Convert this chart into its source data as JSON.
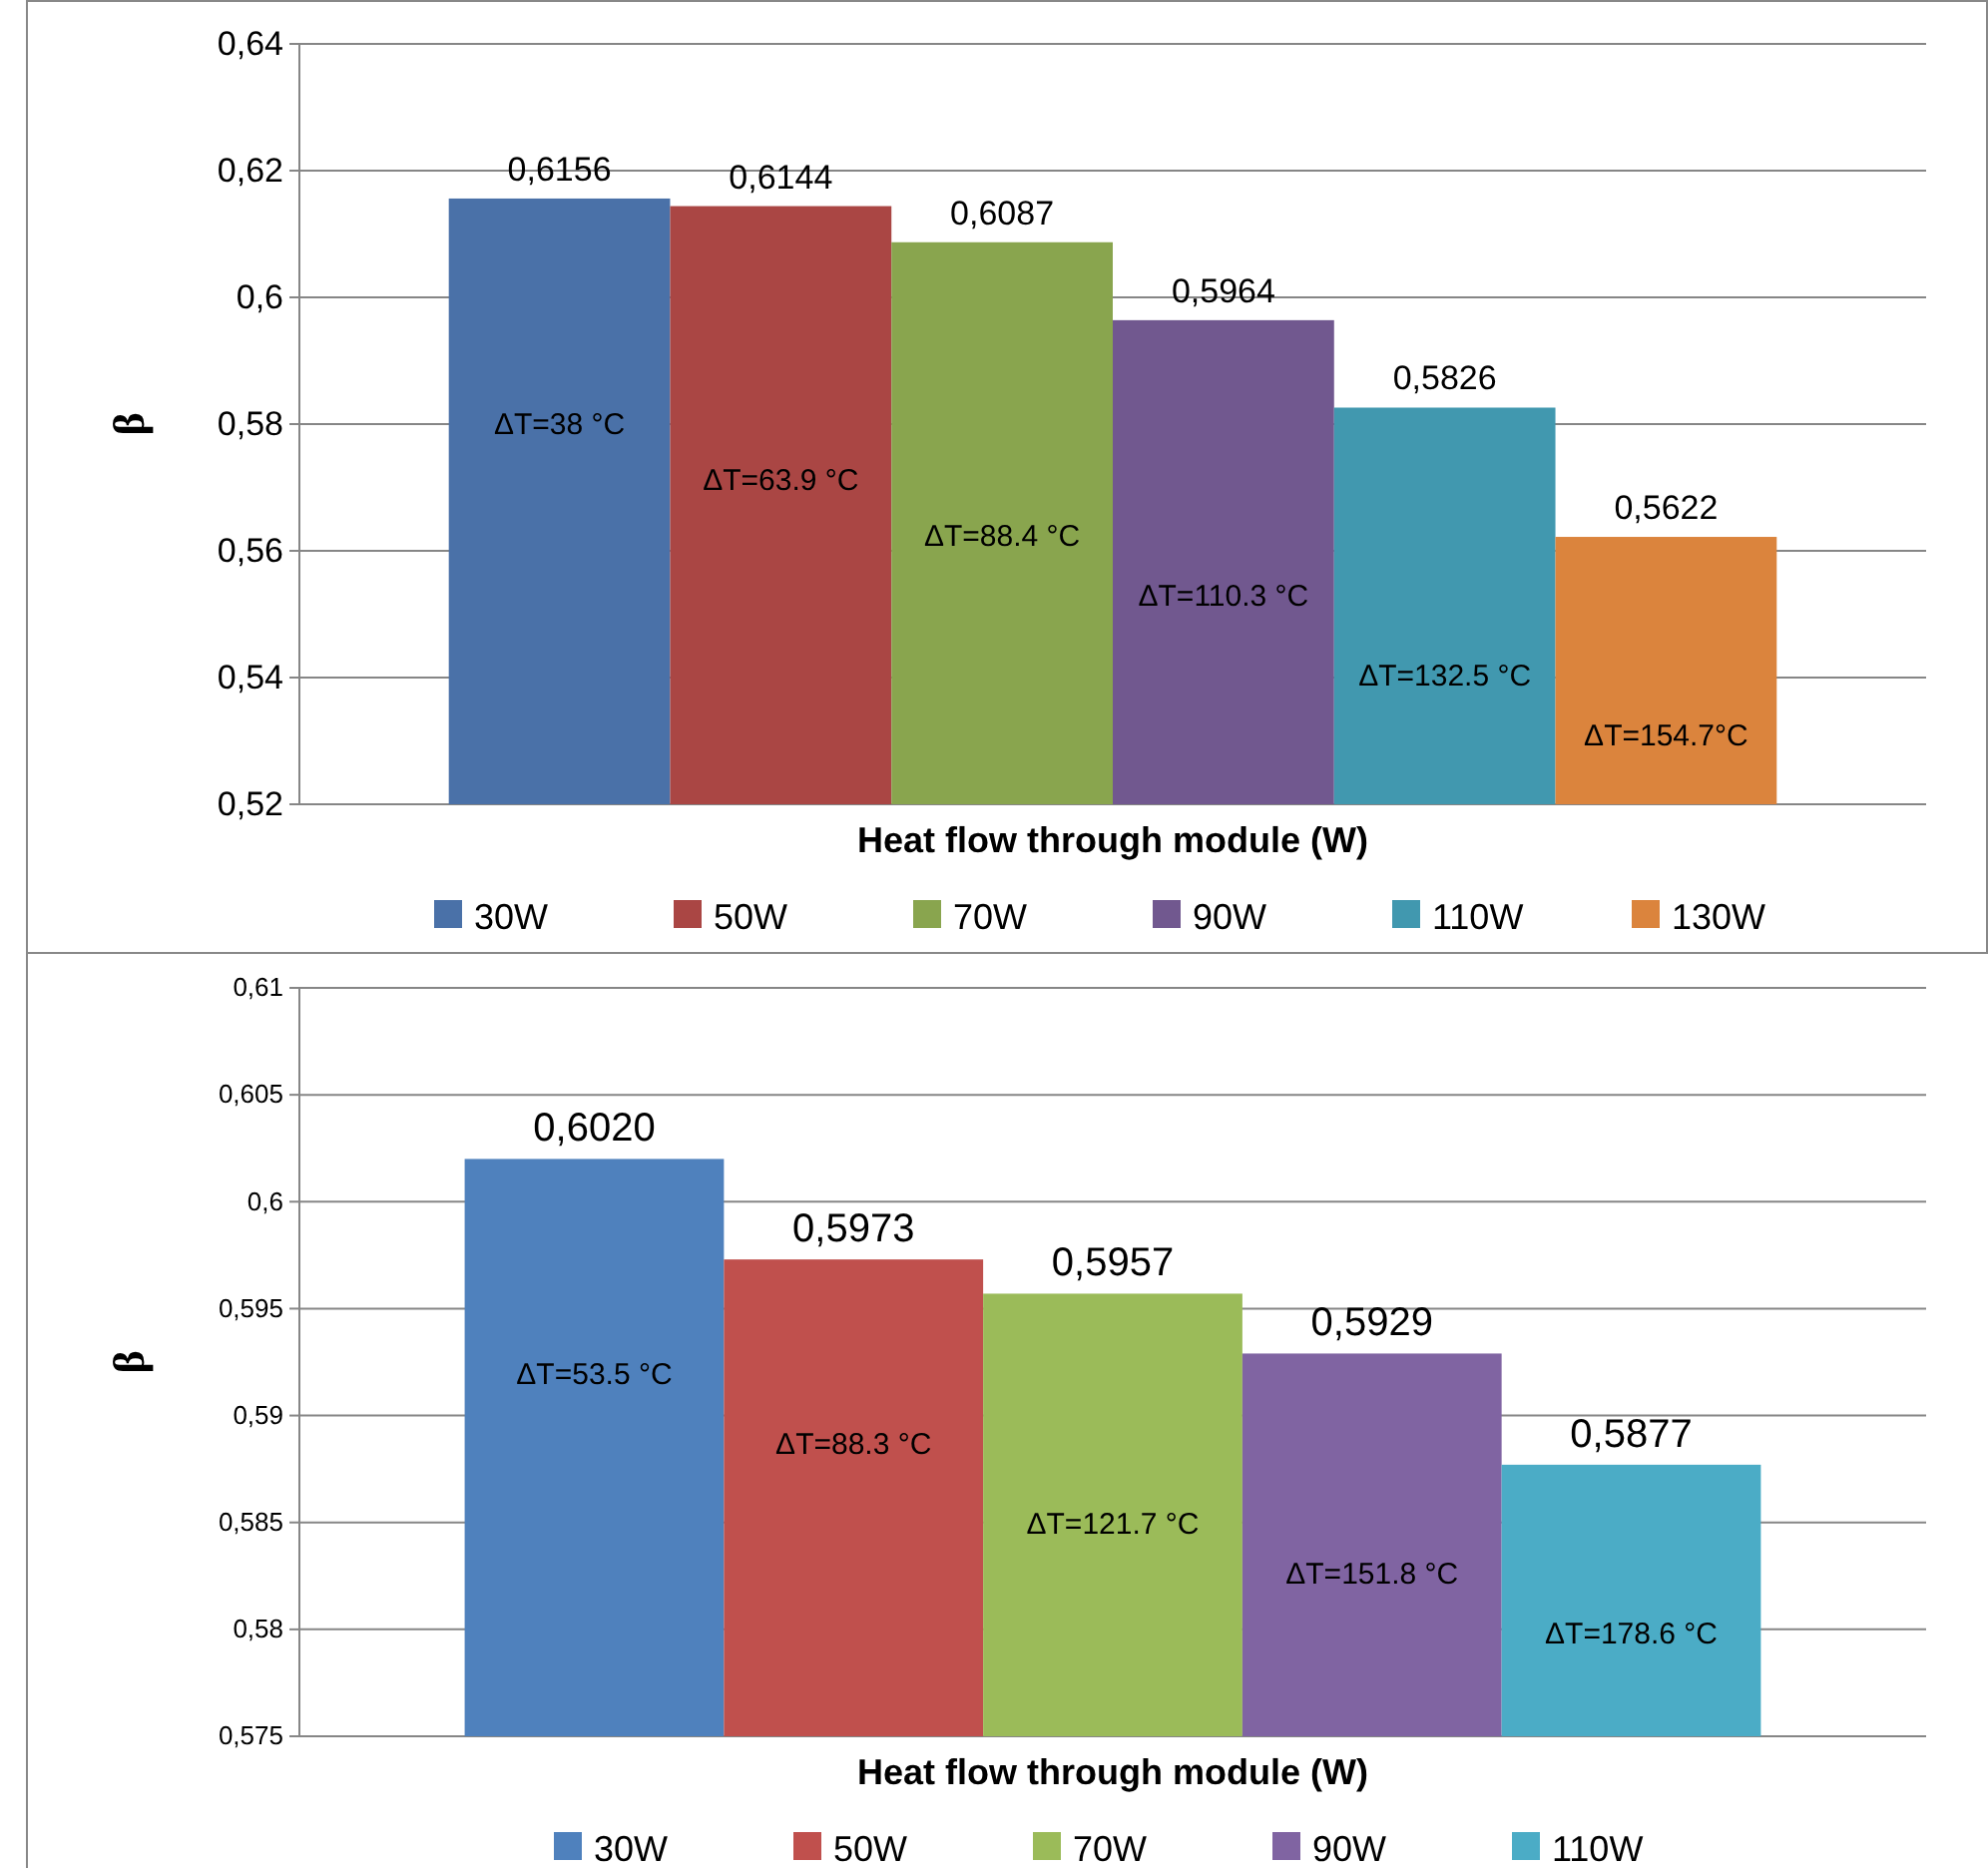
{
  "chart_data": [
    {
      "type": "bar",
      "xlabel": "Heat flow through module (W)",
      "ylabel": "β",
      "categories": [
        null
      ],
      "ylim": [
        0.52,
        0.64
      ],
      "yticks": [
        {
          "value": 0.52,
          "label": "0,52"
        },
        {
          "value": 0.54,
          "label": "0,54"
        },
        {
          "value": 0.56,
          "label": "0,56"
        },
        {
          "value": 0.58,
          "label": "0,58"
        },
        {
          "value": 0.6,
          "label": "0,6"
        },
        {
          "value": 0.62,
          "label": "0,62"
        },
        {
          "value": 0.64,
          "label": "0,64"
        }
      ],
      "grid": "y",
      "legend": "bottom",
      "series": [
        {
          "name": "30W",
          "color": "#4a71a8",
          "values": [
            0.6156
          ],
          "value_labels": [
            "0,6156"
          ]
        },
        {
          "name": "50W",
          "color": "#aa4644",
          "values": [
            0.6144
          ],
          "value_labels": [
            "0,6144"
          ]
        },
        {
          "name": "70W",
          "color": "#89a54e",
          "values": [
            0.6087
          ],
          "value_labels": [
            "0,6087"
          ]
        },
        {
          "name": "90W",
          "color": "#71588f",
          "values": [
            0.5964
          ],
          "value_labels": [
            "0,5964"
          ]
        },
        {
          "name": "110W",
          "color": "#4198af",
          "values": [
            0.5826
          ],
          "value_labels": [
            "0,5826"
          ]
        },
        {
          "name": "130W",
          "color": "#db843d",
          "values": [
            0.5622
          ],
          "value_labels": [
            "0,5622"
          ]
        }
      ],
      "annotations": [
        "ΔT=38 °C",
        "ΔT=63.9 °C",
        "ΔT=88.4 °C",
        "ΔT=110.3 °C",
        "ΔT=132.5 °C",
        "ΔT=154.7°C"
      ]
    },
    {
      "type": "bar",
      "xlabel": "Heat flow through module (W)",
      "ylabel": "β",
      "categories": [
        null
      ],
      "ylim": [
        0.575,
        0.61
      ],
      "yticks": [
        {
          "value": 0.575,
          "label": "0,575"
        },
        {
          "value": 0.58,
          "label": "0,58"
        },
        {
          "value": 0.585,
          "label": "0,585"
        },
        {
          "value": 0.59,
          "label": "0,59"
        },
        {
          "value": 0.595,
          "label": "0,595"
        },
        {
          "value": 0.6,
          "label": "0,6"
        },
        {
          "value": 0.605,
          "label": "0,605"
        },
        {
          "value": 0.61,
          "label": "0,61"
        }
      ],
      "grid": "y",
      "legend": "bottom",
      "series": [
        {
          "name": "30W",
          "color": "#4f81bd",
          "values": [
            0.602
          ],
          "value_labels": [
            "0,6020"
          ]
        },
        {
          "name": "50W",
          "color": "#c0504d",
          "values": [
            0.5973
          ],
          "value_labels": [
            "0,5973"
          ]
        },
        {
          "name": "70W",
          "color": "#9bbb59",
          "values": [
            0.5957
          ],
          "value_labels": [
            "0,5957"
          ]
        },
        {
          "name": "90W",
          "color": "#8064a2",
          "values": [
            0.5929
          ],
          "value_labels": [
            "0,5929"
          ]
        },
        {
          "name": "110W",
          "color": "#4bacc6",
          "values": [
            0.5877
          ],
          "value_labels": [
            "0,5877"
          ]
        }
      ],
      "annotations": [
        "ΔT=53.5 °C",
        "ΔT=88.3 °C",
        "ΔT=121.7 °C",
        "ΔT=151.8 °C",
        "ΔT=178.6 °C"
      ]
    }
  ]
}
